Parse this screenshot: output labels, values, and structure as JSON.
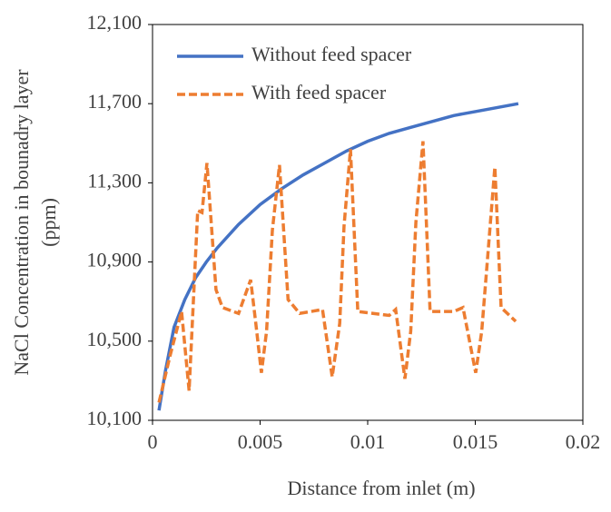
{
  "chart_data": {
    "type": "line",
    "xlabel": "Distance from inlet (m)",
    "ylabel": [
      "NaCl Concentration in bounadry layer",
      "(ppm)"
    ],
    "xlim": [
      0,
      0.02
    ],
    "xticks": [
      0,
      0.005,
      0.01,
      0.015,
      0.02
    ],
    "ylim": [
      10100,
      12100
    ],
    "yticks": [
      {
        "value": 10100,
        "label": "10,100"
      },
      {
        "value": 10500,
        "label": "10,500"
      },
      {
        "value": 10900,
        "label": "10,900"
      },
      {
        "value": 11300,
        "label": "11,300"
      },
      {
        "value": 11700,
        "label": "11,700"
      },
      {
        "value": 12100,
        "label": "12,100"
      }
    ],
    "legend": "upper left",
    "series": [
      {
        "name": "Without feed spacer",
        "color": "#4472c4",
        "dashed": false,
        "x": [
          0.0003,
          0.0006,
          0.001,
          0.0015,
          0.002,
          0.0025,
          0.003,
          0.004,
          0.005,
          0.006,
          0.007,
          0.008,
          0.009,
          0.01,
          0.011,
          0.012,
          0.013,
          0.014,
          0.015,
          0.016,
          0.017
        ],
        "values": [
          10150,
          10350,
          10570,
          10710,
          10820,
          10900,
          10970,
          11090,
          11190,
          11270,
          11340,
          11400,
          11460,
          11510,
          11550,
          11580,
          11610,
          11640,
          11660,
          11680,
          11700
        ]
      },
      {
        "name": "With feed spacer",
        "color": "#ed7d31",
        "dashed": true,
        "x": [
          0.0003,
          0.0008,
          0.00135,
          0.0017,
          0.0021,
          0.0023,
          0.00253,
          0.00295,
          0.00325,
          0.004,
          0.00456,
          0.0048,
          0.00506,
          0.0053,
          0.00557,
          0.0059,
          0.0063,
          0.00684,
          0.0079,
          0.00835,
          0.0087,
          0.0089,
          0.0092,
          0.00954,
          0.011,
          0.0113,
          0.01173,
          0.012,
          0.01224,
          0.01257,
          0.0129,
          0.014,
          0.01443,
          0.01502,
          0.0153,
          0.01591,
          0.0162,
          0.01688
        ],
        "values": [
          10190,
          10420,
          10650,
          10250,
          11160,
          11150,
          11400,
          10760,
          10670,
          10640,
          10810,
          10590,
          10340,
          10550,
          11060,
          11390,
          10710,
          10640,
          10660,
          10320,
          10590,
          11080,
          11470,
          10650,
          10630,
          10660,
          10310,
          10550,
          11100,
          11510,
          10650,
          10650,
          10670,
          10340,
          10550,
          11380,
          10670,
          10600
        ]
      }
    ]
  }
}
